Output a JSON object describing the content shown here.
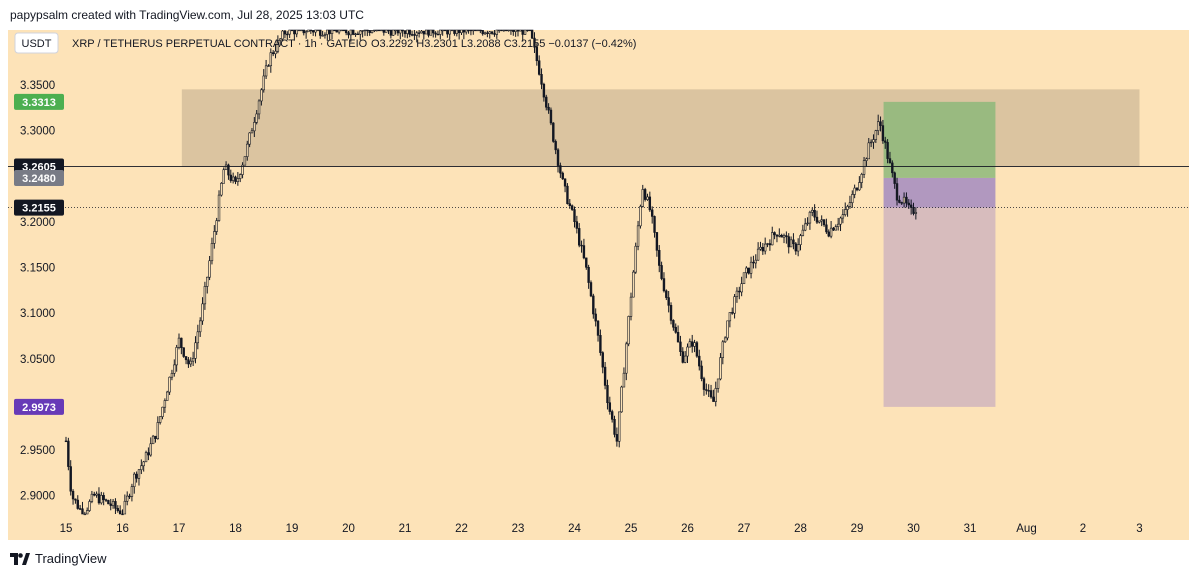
{
  "header": {
    "credit": "papypsalm created with TradingView.com, Jul 28, 2025 13:03 UTC"
  },
  "legend": {
    "currency_button": "USDT",
    "symbol": "XRP / TETHERUS PERPETUAL CONTRACT · 1h · GATEIO",
    "ohlc": "O3.2292  H3.2301  L3.2088  C3.2155  −0.0137 (−0.42%)"
  },
  "footer": {
    "brand": "TradingView"
  },
  "colors": {
    "background": "#fde3b8",
    "zone": "#d7c09d",
    "profit": "#8db87a",
    "entry_band": "#a98fc0",
    "loss": "#d5b9bd",
    "badge_green": "#4caf50",
    "badge_black": "#131722",
    "badge_gray": "#787b86",
    "badge_purple": "#673ab7"
  },
  "chart_data": {
    "type": "candlestick",
    "symbol": "XRP / TETHERUS PERPETUAL CONTRACT",
    "interval": "1h",
    "exchange": "GATEIO",
    "last": {
      "open": 3.2292,
      "high": 3.2301,
      "low": 3.2088,
      "close": 3.2155,
      "change": -0.0137,
      "change_pct": -0.42
    },
    "ylim": [
      2.88,
      3.41
    ],
    "y_ticks": [
      {
        "value": 2.9,
        "label": "2.9000"
      },
      {
        "value": 2.95,
        "label": "2.9500"
      },
      {
        "value": 3.05,
        "label": "3.0500"
      },
      {
        "value": 3.1,
        "label": "3.1000"
      },
      {
        "value": 3.15,
        "label": "3.1500"
      },
      {
        "value": 3.2,
        "label": "3.2000"
      },
      {
        "value": 3.3,
        "label": "3.3000"
      },
      {
        "value": 3.35,
        "label": "3.3500"
      }
    ],
    "x_ticks": [
      "15",
      "16",
      "17",
      "18",
      "19",
      "20",
      "21",
      "22",
      "23",
      "24",
      "25",
      "26",
      "27",
      "28",
      "29",
      "30",
      "31",
      "Aug",
      "2",
      "3"
    ],
    "price_path": [
      [
        15.0,
        2.96
      ],
      [
        15.1,
        2.9
      ],
      [
        15.3,
        2.88
      ],
      [
        15.5,
        2.9
      ],
      [
        15.8,
        2.89
      ],
      [
        16.0,
        2.88
      ],
      [
        16.2,
        2.92
      ],
      [
        16.4,
        2.94
      ],
      [
        16.6,
        2.97
      ],
      [
        16.8,
        3.02
      ],
      [
        17.0,
        3.07
      ],
      [
        17.2,
        3.04
      ],
      [
        17.4,
        3.1
      ],
      [
        17.6,
        3.18
      ],
      [
        17.8,
        3.26
      ],
      [
        18.0,
        3.24
      ],
      [
        18.2,
        3.28
      ],
      [
        18.4,
        3.33
      ],
      [
        18.6,
        3.38
      ],
      [
        18.9,
        3.41
      ],
      [
        21.0,
        3.41
      ],
      [
        23.2,
        3.41
      ],
      [
        23.4,
        3.36
      ],
      [
        23.6,
        3.3
      ],
      [
        23.8,
        3.24
      ],
      [
        24.0,
        3.2
      ],
      [
        24.2,
        3.15
      ],
      [
        24.4,
        3.08
      ],
      [
        24.6,
        3.0
      ],
      [
        24.75,
        2.96
      ],
      [
        25.0,
        3.12
      ],
      [
        25.2,
        3.24
      ],
      [
        25.35,
        3.21
      ],
      [
        25.5,
        3.15
      ],
      [
        25.7,
        3.1
      ],
      [
        25.9,
        3.05
      ],
      [
        26.1,
        3.07
      ],
      [
        26.3,
        3.02
      ],
      [
        26.45,
        3.0
      ],
      [
        26.7,
        3.09
      ],
      [
        27.0,
        3.14
      ],
      [
        27.3,
        3.17
      ],
      [
        27.6,
        3.19
      ],
      [
        27.9,
        3.17
      ],
      [
        28.2,
        3.21
      ],
      [
        28.5,
        3.19
      ],
      [
        28.8,
        3.21
      ],
      [
        29.0,
        3.24
      ],
      [
        29.2,
        3.28
      ],
      [
        29.4,
        3.31
      ],
      [
        29.55,
        3.27
      ],
      [
        29.7,
        3.23
      ],
      [
        29.85,
        3.22
      ],
      [
        29.95,
        3.21
      ],
      [
        30.05,
        3.2155
      ]
    ],
    "zones": [
      {
        "kind": "supply_zone",
        "from_x": 17.05,
        "to_x": 34.0,
        "y_low": 3.26,
        "y_high": 3.345
      }
    ],
    "position": {
      "type": "long",
      "from_x": 29.47,
      "to_x": 31.45,
      "entry": 3.248,
      "target": 3.3313,
      "stop": 2.9973,
      "current": 3.2155
    },
    "horizontal_lines": [
      {
        "value": 3.2605,
        "style": "solid"
      },
      {
        "value": 3.2155,
        "style": "dotted"
      }
    ],
    "price_labels": [
      {
        "value": 3.3313,
        "label": "3.3313",
        "color": "#4caf50"
      },
      {
        "value": 3.2605,
        "label": "3.2605",
        "color": "#131722"
      },
      {
        "value": 3.248,
        "label": "3.2480",
        "color": "#787b86"
      },
      {
        "value": 3.2155,
        "label": "3.2155",
        "color": "#131722"
      },
      {
        "value": 2.9973,
        "label": "2.9973",
        "color": "#673ab7"
      }
    ]
  }
}
